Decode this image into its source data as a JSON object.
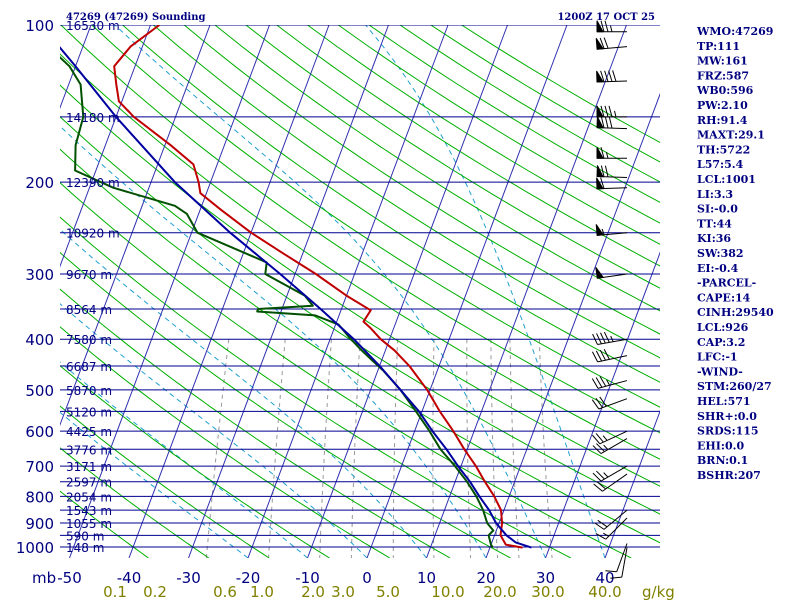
{
  "header": {
    "station": "47269 (47269) Sounding",
    "time": "1200Z 17 OCT 25"
  },
  "chart_data": {
    "type": "line",
    "title": "47269 (47269) Sounding",
    "pressure_axis_unit": "mb",
    "pressure_levels": [
      100,
      200,
      300,
      400,
      500,
      600,
      700,
      800,
      900,
      1000
    ],
    "temperature_ticks": [
      -50,
      -40,
      -30,
      -20,
      -10,
      0,
      10,
      20,
      30,
      40
    ],
    "mixing_ratio_labels": [
      "0.1",
      "0.2",
      "0.6",
      "1.0",
      "2.0",
      "3.0",
      "5.0",
      "10.0",
      "20.0",
      "30.0",
      "40.0"
    ],
    "mixing_ratio_unit": "g/kg",
    "height_labels": [
      {
        "p": 100,
        "label": "16530 m"
      },
      {
        "p": 150,
        "label": "14180 m"
      },
      {
        "p": 200,
        "label": "12390 m"
      },
      {
        "p": 250,
        "label": "10920 m"
      },
      {
        "p": 300,
        "label": "9670 m"
      },
      {
        "p": 350,
        "label": "8564 m"
      },
      {
        "p": 400,
        "label": "7580 m"
      },
      {
        "p": 450,
        "label": "6687 m"
      },
      {
        "p": 500,
        "label": "5870 m"
      },
      {
        "p": 550,
        "label": "5120 m"
      },
      {
        "p": 600,
        "label": "4425 m"
      },
      {
        "p": 650,
        "label": "3776 m"
      },
      {
        "p": 700,
        "label": "3171 m"
      },
      {
        "p": 750,
        "label": "2597 m"
      },
      {
        "p": 800,
        "label": "2054 m"
      },
      {
        "p": 850,
        "label": "1543 m"
      },
      {
        "p": 900,
        "label": "1055 m"
      },
      {
        "p": 950,
        "label": "590 m"
      },
      {
        "p": 1000,
        "label": "148 m"
      }
    ],
    "series": [
      {
        "color": "#c00000",
        "points": [
          [
            1003,
            25.5
          ],
          [
            990,
            22.5
          ],
          [
            950,
            21.0
          ],
          [
            900,
            20.5
          ],
          [
            850,
            19.5
          ],
          [
            800,
            17.5
          ],
          [
            750,
            15.0
          ],
          [
            700,
            12.5
          ],
          [
            650,
            9.5
          ],
          [
            600,
            6.5
          ],
          [
            550,
            3.0
          ],
          [
            500,
            -0.5
          ],
          [
            450,
            -5.0
          ],
          [
            420,
            -8.5
          ],
          [
            400,
            -11.5
          ],
          [
            380,
            -14.0
          ],
          [
            370,
            -15.5
          ],
          [
            352,
            -15.0
          ],
          [
            330,
            -20.0
          ],
          [
            300,
            -26.5
          ],
          [
            275,
            -33.0
          ],
          [
            250,
            -40.0
          ],
          [
            226,
            -46.5
          ],
          [
            210,
            -51.0
          ],
          [
            200,
            -52.0
          ],
          [
            185,
            -54.0
          ],
          [
            170,
            -59.0
          ],
          [
            150,
            -67.0
          ],
          [
            140,
            -70.5
          ],
          [
            130,
            -72.0
          ],
          [
            120,
            -73.5
          ],
          [
            110,
            -72.0
          ],
          [
            100,
            -68.5
          ]
        ]
      },
      {
        "color": "#005000",
        "points": [
          [
            1003,
            20.5
          ],
          [
            990,
            20.0
          ],
          [
            950,
            19.0
          ],
          [
            930,
            19.5
          ],
          [
            900,
            18.0
          ],
          [
            850,
            16.5
          ],
          [
            800,
            14.5
          ],
          [
            750,
            12.0
          ],
          [
            700,
            9.0
          ],
          [
            650,
            5.5
          ],
          [
            600,
            2.5
          ],
          [
            550,
            -1.0
          ],
          [
            500,
            -5.0
          ],
          [
            460,
            -9.0
          ],
          [
            440,
            -11.5
          ],
          [
            420,
            -14.0
          ],
          [
            400,
            -16.5
          ],
          [
            375,
            -19.5
          ],
          [
            360,
            -24.0
          ],
          [
            354,
            -34.0
          ],
          [
            350,
            -34.0
          ],
          [
            345,
            -25.0
          ],
          [
            330,
            -27.0
          ],
          [
            300,
            -35.0
          ],
          [
            285,
            -35.5
          ],
          [
            250,
            -49.0
          ],
          [
            230,
            -52.0
          ],
          [
            222,
            -54.5
          ],
          [
            205,
            -66.0
          ],
          [
            190,
            -73.5
          ],
          [
            170,
            -75.0
          ],
          [
            150,
            -75.5
          ],
          [
            130,
            -78.0
          ],
          [
            120,
            -81.0
          ],
          [
            100,
            -91.0
          ]
        ]
      },
      {
        "color": "#0000a0",
        "points": [
          [
            1003,
            27.0
          ],
          [
            980,
            24.0
          ],
          [
            950,
            22.0
          ],
          [
            900,
            19.5
          ],
          [
            850,
            17.5
          ],
          [
            800,
            15.0
          ],
          [
            750,
            12.5
          ],
          [
            700,
            9.5
          ],
          [
            650,
            6.5
          ],
          [
            600,
            3.0
          ],
          [
            550,
            -0.5
          ],
          [
            500,
            -5.0
          ],
          [
            450,
            -10.0
          ],
          [
            400,
            -16.0
          ],
          [
            350,
            -23.5
          ],
          [
            300,
            -32.5
          ],
          [
            250,
            -43.5
          ],
          [
            200,
            -56.0
          ],
          [
            150,
            -70.0
          ],
          [
            120,
            -80.0
          ],
          [
            110,
            -84.0
          ]
        ]
      }
    ],
    "wind_barbs": [
      {
        "p": 103,
        "dir": 270,
        "spd": 75
      },
      {
        "p": 110,
        "dir": 265,
        "spd": 70
      },
      {
        "p": 128,
        "dir": 268,
        "spd": 90
      },
      {
        "p": 150,
        "dir": 270,
        "spd": 85
      },
      {
        "p": 158,
        "dir": 272,
        "spd": 80
      },
      {
        "p": 180,
        "dir": 270,
        "spd": 65
      },
      {
        "p": 196,
        "dir": 272,
        "spd": 70
      },
      {
        "p": 205,
        "dir": 268,
        "spd": 60
      },
      {
        "p": 250,
        "dir": 265,
        "spd": 55
      },
      {
        "p": 300,
        "dir": 262,
        "spd": 50
      },
      {
        "p": 400,
        "dir": 260,
        "spd": 45
      },
      {
        "p": 430,
        "dir": 258,
        "spd": 40
      },
      {
        "p": 480,
        "dir": 255,
        "spd": 35
      },
      {
        "p": 520,
        "dir": 250,
        "spd": 30
      },
      {
        "p": 600,
        "dir": 245,
        "spd": 25
      },
      {
        "p": 620,
        "dir": 240,
        "spd": 25
      },
      {
        "p": 700,
        "dir": 240,
        "spd": 25
      },
      {
        "p": 725,
        "dir": 235,
        "spd": 20
      },
      {
        "p": 850,
        "dir": 230,
        "spd": 20
      },
      {
        "p": 880,
        "dir": 225,
        "spd": 15
      },
      {
        "p": 985,
        "dir": 200,
        "spd": 10
      },
      {
        "p": 1003,
        "dir": 190,
        "spd": 10
      }
    ]
  },
  "indices": [
    "WMO:47269",
    "TP:111",
    "MW:161",
    "FRZ:587",
    "WB0:596",
    "PW:2.10",
    "RH:91.4",
    "MAXT:29.1",
    "TH:5722",
    "L57:5.4",
    "LCL:1001",
    "LI:3.3",
    "SI:-0.0",
    "TT:44",
    "KI:36",
    "SW:382",
    "EI:-0.4",
    "-PARCEL-",
    "CAPE:14",
    "CINH:29540",
    "LCL:926",
    "CAP:3.2",
    "LFC:-1",
    "-WIND-",
    "STM:260/27",
    "HEL:571",
    "SHR+:0.0",
    "SRDS:115",
    "EHI:0.0",
    "BRN:0.1",
    "BSHR:207"
  ]
}
